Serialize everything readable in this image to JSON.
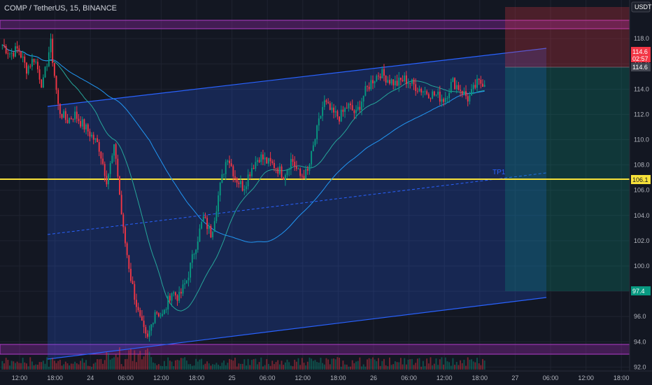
{
  "header": {
    "title": "COMP / TetherUS, 15, BINANCE",
    "currency": "USDT"
  },
  "chart_data": {
    "type": "candlestick",
    "ylim": [
      91.8,
      120.5
    ],
    "y_ticks": [
      "118.0",
      "116.0",
      "114.0",
      "112.0",
      "110.0",
      "108.0",
      "106.0",
      "104.0",
      "102.0",
      "100.0",
      "98.0",
      "96.0",
      "94.0",
      "92.0"
    ],
    "x_ticks": [
      "12:00",
      "18:00",
      "24",
      "06:00",
      "12:00",
      "18:00",
      "25",
      "06:00",
      "12:00",
      "18:00",
      "26",
      "06:00",
      "12:00",
      "18:00",
      "27",
      "06:00",
      "12:00",
      "18:00"
    ],
    "price_badges": {
      "current": "114.6",
      "countdown": "02:57",
      "last": "114.6",
      "tp": "106.1",
      "stop": "97.4"
    },
    "levels": {
      "tp1_line": 106.1,
      "tp1_label": "TP1"
    },
    "candles_close_path": [
      117.5,
      116.8,
      117.2,
      115.6,
      116.5,
      114.2,
      117.7,
      112.4,
      111.5,
      112.0,
      111.2,
      110.4,
      109.5,
      106.8,
      109.5,
      103.0,
      99.0,
      96.0,
      94.0,
      96.5,
      96.0,
      98.0,
      97.5,
      99.0,
      101.5,
      103.8,
      102.5,
      106.0,
      108.8,
      107.0,
      106.2,
      107.8,
      108.7,
      108.2,
      107.9,
      107.2,
      108.5,
      107.1,
      107.4,
      110.3,
      113.0,
      112.1,
      111.8,
      112.7,
      112.0,
      113.6,
      114.7,
      115.3,
      114.8,
      114.4,
      114.8,
      114.4,
      114.0,
      113.7,
      113.5,
      113.2,
      114.6,
      114.0,
      113.2,
      114.4,
      114.6
    ]
  }
}
